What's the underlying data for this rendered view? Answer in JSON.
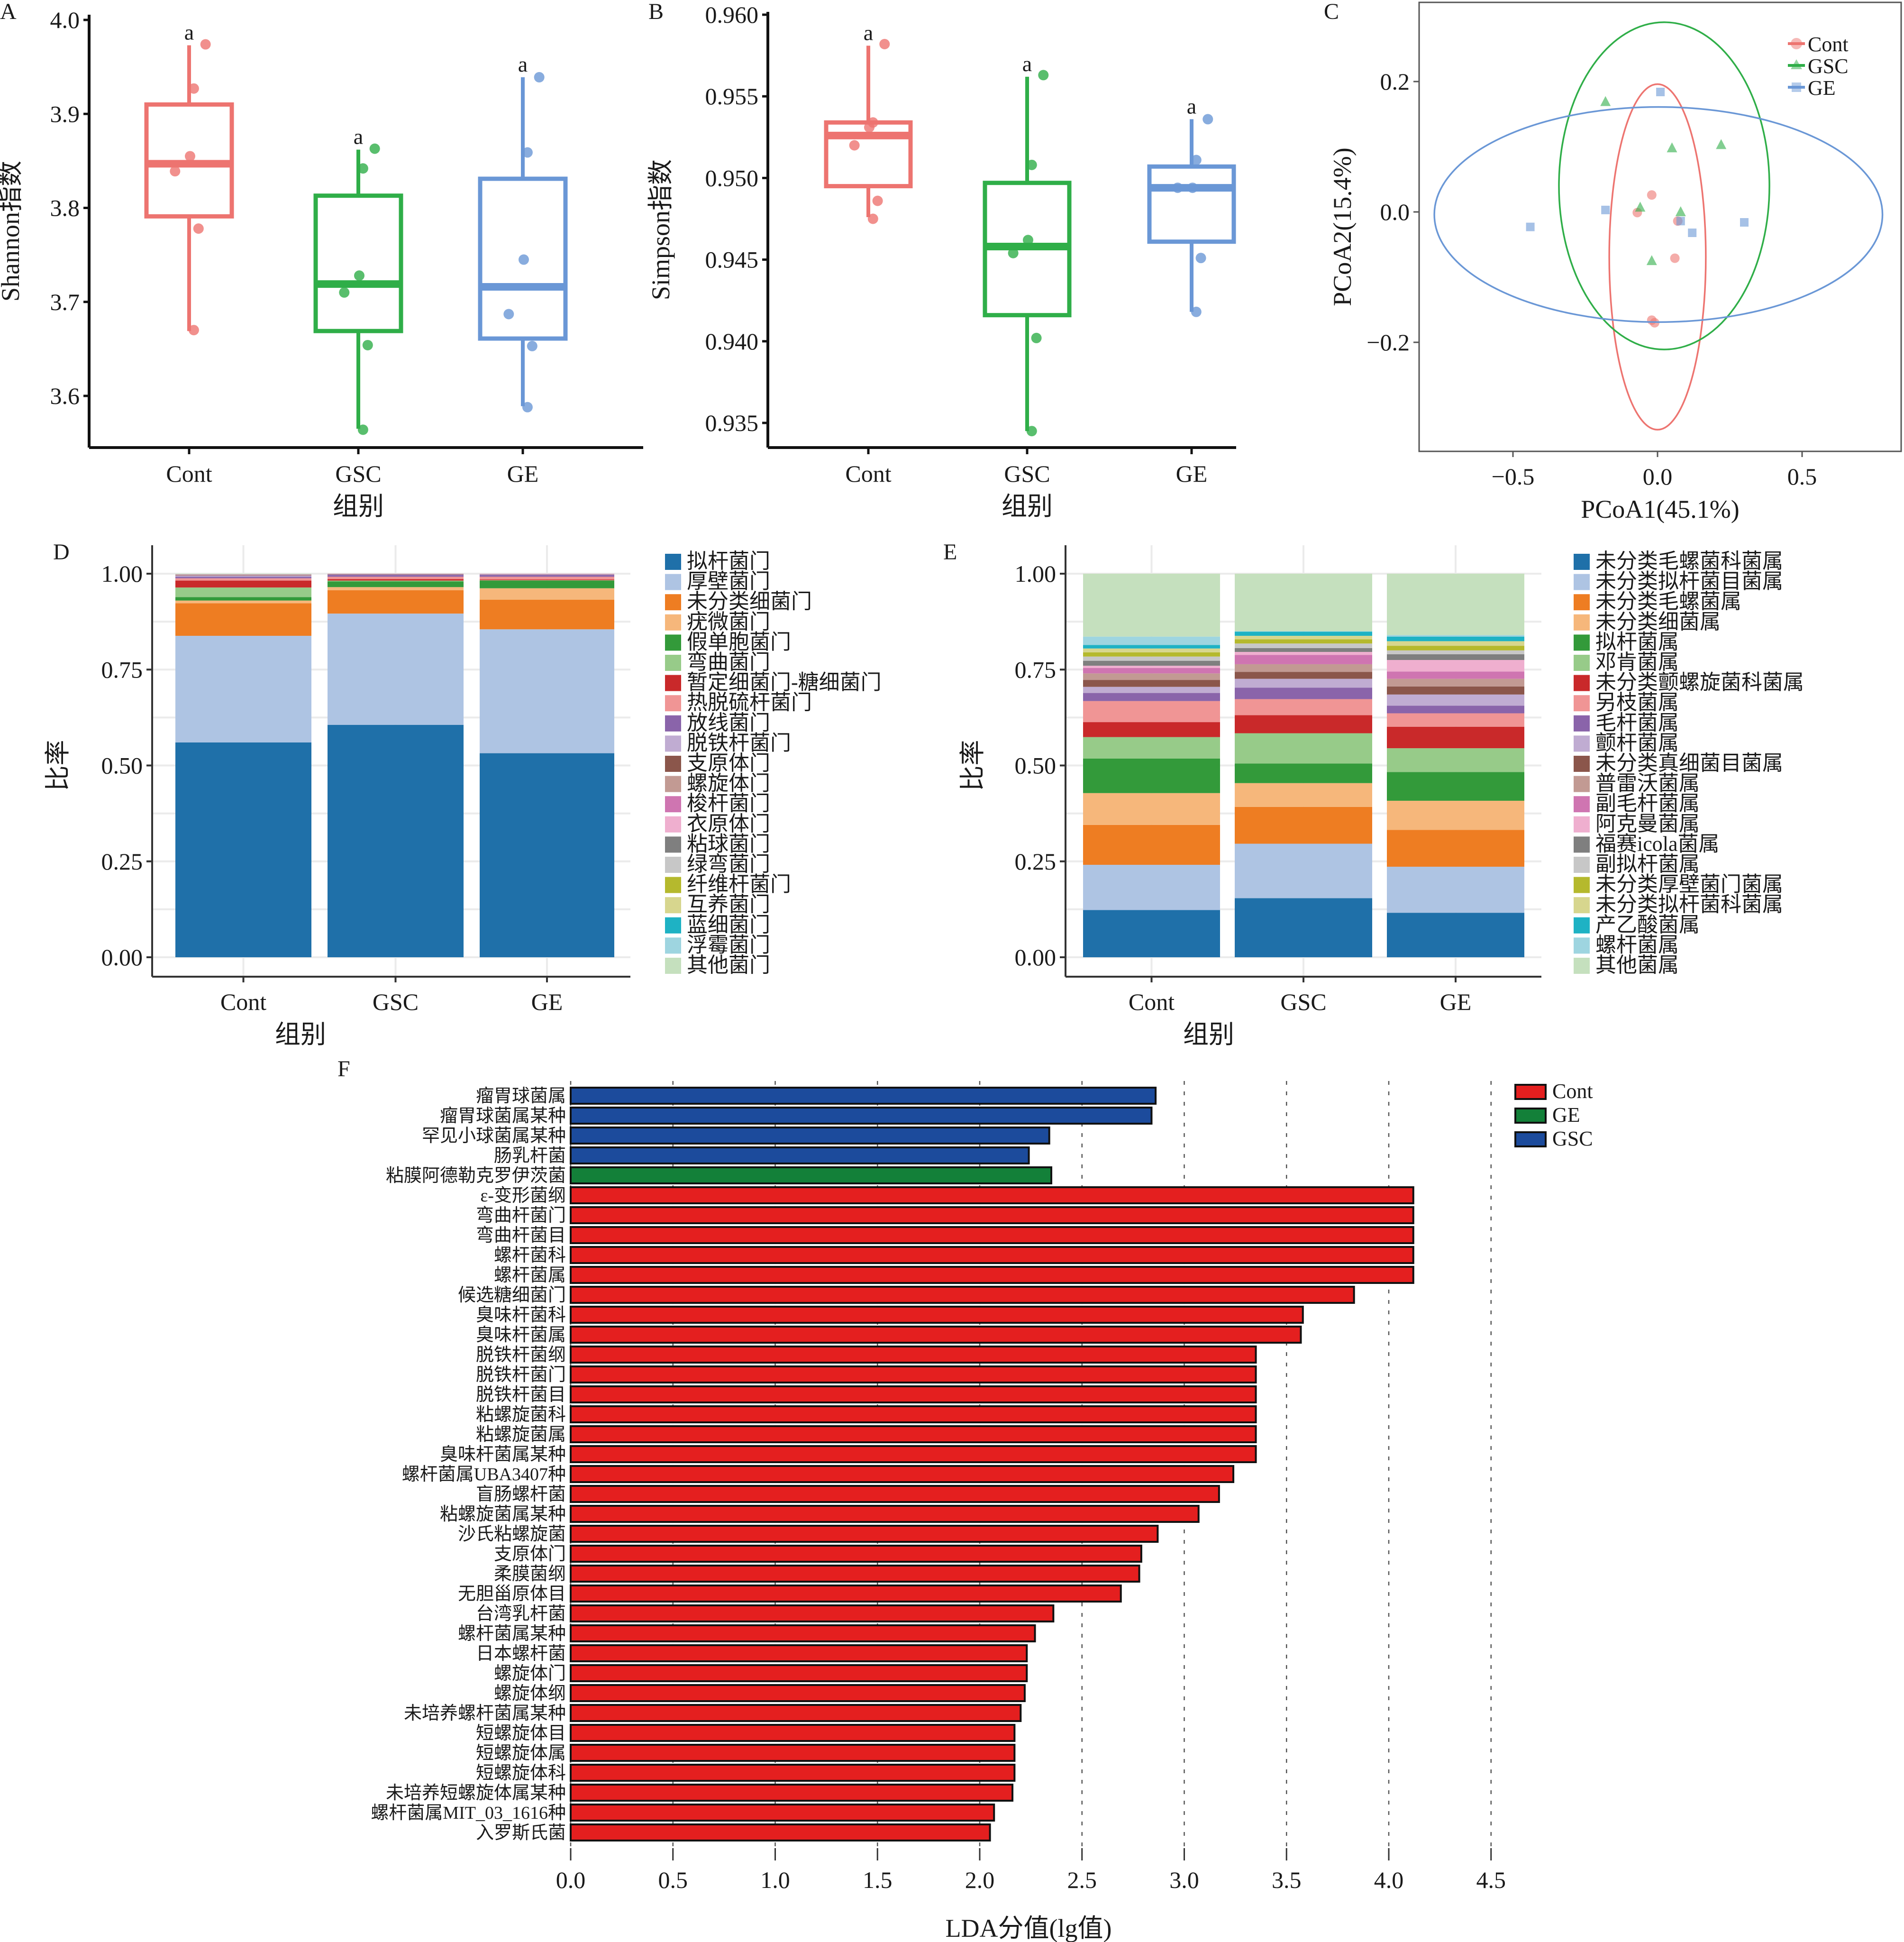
{
  "figure": {
    "panel_labels": [
      "A",
      "B",
      "C",
      "D",
      "E",
      "F"
    ]
  },
  "groups": [
    "Cont",
    "GSC",
    "GE"
  ],
  "group_colors": {
    "Cont": "#ed7470",
    "GSC": "#2fae48",
    "GE": "#6a97d6"
  },
  "chart_data": [
    {
      "panel": "A",
      "type": "box",
      "title": "",
      "xlabel": "组别",
      "ylabel": "Shannon指数",
      "categories": [
        "Cont",
        "GSC",
        "GE"
      ],
      "ylim": [
        3.54,
        4.02
      ],
      "yticks": [
        3.6,
        3.7,
        3.8,
        3.9,
        4.0
      ],
      "ytick_labels": [
        "3.6",
        "3.7",
        "3.8",
        "3.9",
        "4.0"
      ],
      "boxes": [
        {
          "group": "Cont",
          "whisker_low": 3.669,
          "q1": 3.791,
          "median": 3.847,
          "q3": 3.91,
          "whisker_high": 3.973,
          "sig": "a",
          "points": [
            3.974,
            3.927,
            3.855,
            3.839,
            3.778,
            3.67
          ]
        },
        {
          "group": "GSC",
          "whisker_low": 3.565,
          "q1": 3.669,
          "median": 3.719,
          "q3": 3.813,
          "whisker_high": 3.862,
          "sig": "a",
          "points": [
            3.863,
            3.842,
            3.728,
            3.71,
            3.654,
            3.564
          ]
        },
        {
          "group": "GE",
          "whisker_low": 3.589,
          "q1": 3.661,
          "median": 3.716,
          "q3": 3.831,
          "whisker_high": 3.939,
          "sig": "a",
          "points": [
            3.939,
            3.859,
            3.745,
            3.687,
            3.653,
            3.588
          ]
        }
      ]
    },
    {
      "panel": "B",
      "type": "box",
      "title": "",
      "xlabel": "组别",
      "ylabel": "Simpson指数",
      "categories": [
        "Cont",
        "GSC",
        "GE"
      ],
      "ylim": [
        0.9333,
        0.9602
      ],
      "yticks": [
        0.935,
        0.94,
        0.945,
        0.95,
        0.955,
        0.96
      ],
      "ytick_labels": [
        "0.935",
        "0.940",
        "0.945",
        "0.950",
        "0.955",
        "0.960"
      ],
      "boxes": [
        {
          "group": "Cont",
          "whisker_low": 0.9476,
          "q1": 0.9495,
          "median": 0.9526,
          "q3": 0.9534,
          "whisker_high": 0.9581,
          "sig": "a",
          "points": [
            0.9582,
            0.9534,
            0.9531,
            0.952,
            0.9486,
            0.9475
          ]
        },
        {
          "group": "GSC",
          "whisker_low": 0.9345,
          "q1": 0.9416,
          "median": 0.9458,
          "q3": 0.9497,
          "whisker_high": 0.9562,
          "sig": "a",
          "points": [
            0.9563,
            0.9508,
            0.9462,
            0.9454,
            0.9402,
            0.9345
          ]
        },
        {
          "group": "GE",
          "whisker_low": 0.9418,
          "q1": 0.9461,
          "median": 0.9494,
          "q3": 0.9507,
          "whisker_high": 0.9536,
          "sig": "a",
          "points": [
            0.9536,
            0.9511,
            0.9494,
            0.9494,
            0.9451,
            0.9418
          ]
        }
      ]
    },
    {
      "panel": "C",
      "type": "scatter",
      "title": "",
      "xlabel": "PCoA1(45.1%)",
      "ylabel": "PCoA2(15.4%)",
      "xlim": [
        -0.85,
        0.85
      ],
      "ylim": [
        -0.365,
        0.32
      ],
      "xticks": [
        -0.5,
        0.0,
        0.5
      ],
      "xtick_labels": [
        "−0.5",
        "0.0",
        "0.5"
      ],
      "yticks": [
        -0.2,
        0.0,
        0.2
      ],
      "ytick_labels": [
        "−0.2",
        "0.0",
        "0.2"
      ],
      "legend_position": "top-right",
      "series": [
        {
          "name": "Cont",
          "marker": "circle",
          "points": [
            [
              -0.02,
              0.026
            ],
            [
              -0.07,
              -0.001
            ],
            [
              0.07,
              -0.014
            ],
            [
              0.06,
              -0.071
            ],
            [
              -0.02,
              -0.166
            ],
            [
              -0.01,
              -0.17
            ]
          ],
          "ellipse": {
            "cx": 0.0,
            "cy": -0.069,
            "rx": 0.167,
            "ry": 0.265
          }
        },
        {
          "name": "GSC",
          "marker": "triangle",
          "points": [
            [
              -0.18,
              0.169
            ],
            [
              0.05,
              0.098
            ],
            [
              0.22,
              0.103
            ],
            [
              -0.06,
              0.007
            ],
            [
              0.08,
              0.0
            ],
            [
              -0.02,
              -0.075
            ]
          ],
          "ellipse": {
            "cx": 0.023,
            "cy": 0.04,
            "rx": 0.364,
            "ry": 0.251
          }
        },
        {
          "name": "GE",
          "marker": "square",
          "points": [
            [
              0.01,
              0.184
            ],
            [
              -0.18,
              0.003
            ],
            [
              -0.44,
              -0.023
            ],
            [
              0.08,
              -0.014
            ],
            [
              0.12,
              -0.032
            ],
            [
              0.3,
              -0.016
            ]
          ],
          "ellipse": {
            "cx": 0.003,
            "cy": -0.004,
            "rx": 0.775,
            "ry": 0.165
          }
        }
      ]
    },
    {
      "panel": "D",
      "type": "bar",
      "stacked": true,
      "title": "",
      "xlabel": "组别",
      "ylabel": "比率",
      "categories": [
        "Cont",
        "GSC",
        "GE"
      ],
      "ylim": [
        0,
        1
      ],
      "yticks": [
        0,
        0.25,
        0.5,
        0.75,
        1.0
      ],
      "ytick_labels": [
        "0.00",
        "0.25",
        "0.50",
        "0.75",
        "1.00"
      ],
      "grid": true,
      "legend_position": "right",
      "series": [
        {
          "name": "拟杆菌门",
          "color": "#1f70a9",
          "values": [
            0.56,
            0.606,
            0.532
          ]
        },
        {
          "name": "厚壁菌门",
          "color": "#aec4e3",
          "values": [
            0.278,
            0.29,
            0.323
          ]
        },
        {
          "name": "未分类细菌门",
          "color": "#ee7d22",
          "values": [
            0.085,
            0.061,
            0.077
          ]
        },
        {
          "name": "疣微菌门",
          "color": "#f6b77b",
          "values": [
            0.007,
            0.008,
            0.03
          ]
        },
        {
          "name": "假单胞菌门",
          "color": "#339a3a",
          "values": [
            0.009,
            0.015,
            0.02
          ]
        },
        {
          "name": "弯曲菌门",
          "color": "#97cb89",
          "values": [
            0.025,
            0.002,
            0.001
          ]
        },
        {
          "name": "暂定细菌门-糖细菌门",
          "color": "#c9292a",
          "values": [
            0.018,
            0.004,
            0.002
          ]
        },
        {
          "name": "热脱硫杆菌门",
          "color": "#f09595",
          "values": [
            0.006,
            0.006,
            0.007
          ]
        },
        {
          "name": "放线菌门",
          "color": "#8a64aa",
          "values": [
            0.004,
            0.005,
            0.005
          ]
        },
        {
          "name": "脱铁杆菌门",
          "color": "#c0acd2",
          "values": [
            0.003,
            0.001,
            0.001
          ]
        },
        {
          "name": "支原体门",
          "color": "#8b564b",
          "values": [
            0.001,
            0.001,
            0.0005
          ]
        },
        {
          "name": "螺旋体门",
          "color": "#c29a93",
          "values": [
            0.001,
            0.0005,
            0.0005
          ]
        },
        {
          "name": "梭杆菌门",
          "color": "#cf75b1",
          "values": [
            0.0005,
            0.0005,
            0.0005
          ]
        },
        {
          "name": "衣原体门",
          "color": "#efafcf",
          "values": [
            0.0005,
            0.0005,
            0.0005
          ]
        },
        {
          "name": "粘球菌门",
          "color": "#7f7f7f",
          "values": [
            0.0005,
            0.0,
            0.0
          ]
        },
        {
          "name": "绿弯菌门",
          "color": "#c7c7c7",
          "values": [
            0.0005,
            0.0,
            0.0
          ]
        },
        {
          "name": "纤维杆菌门",
          "color": "#b5b92d",
          "values": [
            0.0,
            0.0,
            0.0
          ]
        },
        {
          "name": "互养菌门",
          "color": "#d7d68e",
          "values": [
            0.0,
            0.0,
            0.0
          ]
        },
        {
          "name": "蓝细菌门",
          "color": "#1eb2c4",
          "values": [
            0.0,
            0.0,
            0.0
          ]
        },
        {
          "name": "浮霉菌门",
          "color": "#9ed5e0",
          "values": [
            0.0,
            0.0,
            0.0
          ]
        },
        {
          "name": "其他菌门",
          "color": "#c5e0be",
          "values": [
            0.0,
            0.0,
            0.0
          ]
        }
      ]
    },
    {
      "panel": "E",
      "type": "bar",
      "stacked": true,
      "title": "",
      "xlabel": "组别",
      "ylabel": "比率",
      "categories": [
        "Cont",
        "GSC",
        "GE"
      ],
      "ylim": [
        0,
        1
      ],
      "yticks": [
        0,
        0.25,
        0.5,
        0.75,
        1.0
      ],
      "ytick_labels": [
        "0.00",
        "0.25",
        "0.50",
        "0.75",
        "1.00"
      ],
      "grid": true,
      "legend_position": "right",
      "series": [
        {
          "name": "未分类毛螺菌科菌属",
          "color": "#1f70a9",
          "values": [
            0.123,
            0.154,
            0.116
          ]
        },
        {
          "name": "未分类拟杆菌目菌属",
          "color": "#aec4e3",
          "values": [
            0.118,
            0.142,
            0.12
          ]
        },
        {
          "name": "未分类毛螺菌属",
          "color": "#ee7d22",
          "values": [
            0.104,
            0.096,
            0.096
          ]
        },
        {
          "name": "未分类细菌属",
          "color": "#f6b77b",
          "values": [
            0.083,
            0.062,
            0.076
          ]
        },
        {
          "name": "拟杆菌属",
          "color": "#339a3a",
          "values": [
            0.09,
            0.051,
            0.075
          ]
        },
        {
          "name": "邓肯菌属",
          "color": "#97cb89",
          "values": [
            0.056,
            0.079,
            0.062
          ]
        },
        {
          "name": "未分类颤螺旋菌科菌属",
          "color": "#c9292a",
          "values": [
            0.039,
            0.047,
            0.056
          ]
        },
        {
          "name": "另枝菌属",
          "color": "#f09595",
          "values": [
            0.055,
            0.042,
            0.035
          ]
        },
        {
          "name": "毛杆菌属",
          "color": "#8a64aa",
          "values": [
            0.021,
            0.03,
            0.02
          ]
        },
        {
          "name": "颤杆菌属",
          "color": "#c0acd2",
          "values": [
            0.016,
            0.023,
            0.029
          ]
        },
        {
          "name": "未分类真细菌目菌属",
          "color": "#8b564b",
          "values": [
            0.018,
            0.018,
            0.021
          ]
        },
        {
          "name": "普雷沃菌属",
          "color": "#c29a93",
          "values": [
            0.017,
            0.02,
            0.02
          ]
        },
        {
          "name": "副毛杆菌属",
          "color": "#cf75b1",
          "values": [
            0.014,
            0.024,
            0.019
          ]
        },
        {
          "name": "阿克曼菌属",
          "color": "#efafcf",
          "values": [
            0.006,
            0.008,
            0.03
          ]
        },
        {
          "name": "福赛icola菌属",
          "color": "#7f7f7f",
          "values": [
            0.013,
            0.01,
            0.015
          ]
        },
        {
          "name": "副拟杆菌属",
          "color": "#c7c7c7",
          "values": [
            0.011,
            0.012,
            0.01
          ]
        },
        {
          "name": "未分类厚壁菌门菌属",
          "color": "#b5b92d",
          "values": [
            0.011,
            0.011,
            0.012
          ]
        },
        {
          "name": "未分类拟杆菌科菌属",
          "color": "#d7d68e",
          "values": [
            0.01,
            0.009,
            0.012
          ]
        },
        {
          "name": "产乙酸菌属",
          "color": "#1eb2c4",
          "values": [
            0.009,
            0.011,
            0.012
          ]
        },
        {
          "name": "螺杆菌属",
          "color": "#9ed5e0",
          "values": [
            0.022,
            0.001,
            0.004
          ]
        },
        {
          "name": "其他菌属",
          "color": "#c5e0be",
          "values": [
            0.164,
            0.15,
            0.16
          ]
        }
      ]
    },
    {
      "panel": "F",
      "type": "bar",
      "orientation": "horizontal",
      "title": "",
      "xlabel": "LDA分值(lg值)",
      "ylabel": "",
      "xlim": [
        0,
        4.6
      ],
      "xticks": [
        0.0,
        0.5,
        1.0,
        1.5,
        2.0,
        2.5,
        3.0,
        3.5,
        4.0,
        4.5
      ],
      "xtick_labels": [
        "0.0",
        "0.5",
        "1.0",
        "1.5",
        "2.0",
        "2.5",
        "3.0",
        "3.5",
        "4.0",
        "4.5"
      ],
      "grid": true,
      "legend_position": "top-right",
      "legend": [
        {
          "name": "Cont",
          "color": "#e41f1f"
        },
        {
          "name": "GE",
          "color": "#138039"
        },
        {
          "name": "GSC",
          "color": "#1c4b9c"
        }
      ],
      "bars": [
        {
          "label": "瘤胃球菌属",
          "group": "GSC",
          "value": 2.86
        },
        {
          "label": "瘤胃球菌属某种",
          "group": "GSC",
          "value": 2.84
        },
        {
          "label": "罕见小球菌属某种",
          "group": "GSC",
          "value": 2.34
        },
        {
          "label": "肠乳杆菌",
          "group": "GSC",
          "value": 2.24
        },
        {
          "label": "粘膜阿德勒克罗伊茨菌",
          "group": "GE",
          "value": 2.35
        },
        {
          "label": "ε-变形菌纲",
          "group": "Cont",
          "value": 4.12
        },
        {
          "label": "弯曲杆菌门",
          "group": "Cont",
          "value": 4.12
        },
        {
          "label": "弯曲杆菌目",
          "group": "Cont",
          "value": 4.12
        },
        {
          "label": "螺杆菌科",
          "group": "Cont",
          "value": 4.12
        },
        {
          "label": "螺杆菌属",
          "group": "Cont",
          "value": 4.12
        },
        {
          "label": "候选糖细菌门",
          "group": "Cont",
          "value": 3.83
        },
        {
          "label": "臭味杆菌科",
          "group": "Cont",
          "value": 3.58
        },
        {
          "label": "臭味杆菌属",
          "group": "Cont",
          "value": 3.57
        },
        {
          "label": "脱铁杆菌纲",
          "group": "Cont",
          "value": 3.35
        },
        {
          "label": "脱铁杆菌门",
          "group": "Cont",
          "value": 3.35
        },
        {
          "label": "脱铁杆菌目",
          "group": "Cont",
          "value": 3.35
        },
        {
          "label": "粘螺旋菌科",
          "group": "Cont",
          "value": 3.35
        },
        {
          "label": "粘螺旋菌属",
          "group": "Cont",
          "value": 3.35
        },
        {
          "label": "臭味杆菌属某种",
          "group": "Cont",
          "value": 3.35
        },
        {
          "label": "螺杆菌属UBA3407种",
          "group": "Cont",
          "value": 3.24
        },
        {
          "label": "盲肠螺杆菌",
          "group": "Cont",
          "value": 3.17
        },
        {
          "label": "粘螺旋菌属某种",
          "group": "Cont",
          "value": 3.07
        },
        {
          "label": "沙氏粘螺旋菌",
          "group": "Cont",
          "value": 2.87
        },
        {
          "label": "支原体门",
          "group": "Cont",
          "value": 2.79
        },
        {
          "label": "柔膜菌纲",
          "group": "Cont",
          "value": 2.78
        },
        {
          "label": "无胆甾原体目",
          "group": "Cont",
          "value": 2.69
        },
        {
          "label": "台湾乳杆菌",
          "group": "Cont",
          "value": 2.36
        },
        {
          "label": "螺杆菌属某种",
          "group": "Cont",
          "value": 2.27
        },
        {
          "label": "日本螺杆菌",
          "group": "Cont",
          "value": 2.23
        },
        {
          "label": "螺旋体门",
          "group": "Cont",
          "value": 2.23
        },
        {
          "label": "螺旋体纲",
          "group": "Cont",
          "value": 2.22
        },
        {
          "label": "未培养螺杆菌属某种",
          "group": "Cont",
          "value": 2.2
        },
        {
          "label": "短螺旋体目",
          "group": "Cont",
          "value": 2.17
        },
        {
          "label": "短螺旋体属",
          "group": "Cont",
          "value": 2.17
        },
        {
          "label": "短螺旋体科",
          "group": "Cont",
          "value": 2.17
        },
        {
          "label": "未培养短螺旋体属某种",
          "group": "Cont",
          "value": 2.16
        },
        {
          "label": "螺杆菌属MIT_03_1616种",
          "group": "Cont",
          "value": 2.07
        },
        {
          "label": "入罗斯氏菌",
          "group": "Cont",
          "value": 2.05
        }
      ]
    }
  ]
}
